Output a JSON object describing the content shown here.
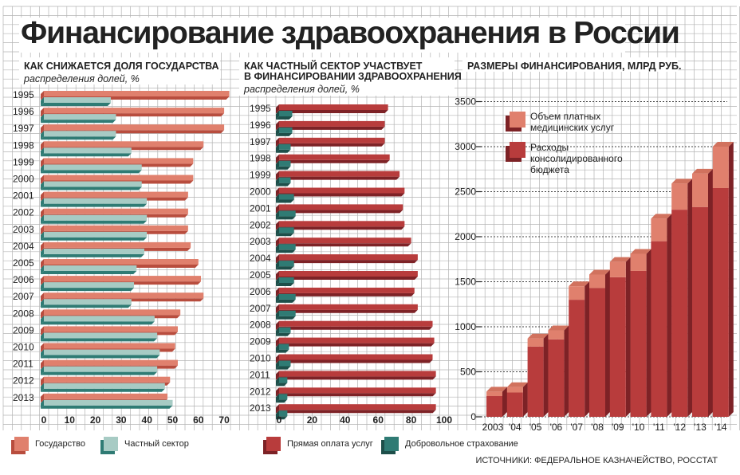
{
  "title": "Финансирование здравоохранения в России",
  "colors": {
    "red_light": "#e0806d",
    "red_dark": "#b83c3c",
    "teal_light": "#a7cbc4",
    "teal_dark": "#2f7b74",
    "grid": "#b4b4b4"
  },
  "panel1": {
    "title": "КАК СНИЖАЕТСЯ ДОЛЯ ГОСУДАРСТВА",
    "subtitle": "распределения долей, %",
    "legend": [
      "Государство",
      "Частный сектор"
    ]
  },
  "panel2": {
    "title_line1": "КАК ЧАСТНЫЙ СЕКТОР УЧАСТВУЕТ",
    "title_line2": "В ФИНАНСИРОВАНИИ ЗДРАВООХРАНЕНИЯ",
    "subtitle": "распределения долей, %",
    "legend": [
      "Прямая оплата услуг",
      "Добровольное страхование"
    ]
  },
  "panel3": {
    "title": "РАЗМЕРЫ ФИНАНСИРОВАНИЯ, МЛРД РУБ.",
    "legend": [
      "Объем платных медицинских услуг",
      "Расходы консолидированного бюджета"
    ]
  },
  "source": "ИСТОЧНИКИ: ФЕДЕРАЛЬНОЕ КАЗНАЧЕЙСТВО, РОССТАТ",
  "chart_data": [
    {
      "type": "bar",
      "orientation": "horizontal",
      "title": "КАК СНИЖАЕТСЯ ДОЛЯ ГОСУДАРСТВА",
      "categories": [
        "1995",
        "1996",
        "1997",
        "1998",
        "1999",
        "2000",
        "2001",
        "2002",
        "2003",
        "2004",
        "2005",
        "2006",
        "2007",
        "2008",
        "2009",
        "2010",
        "2011",
        "2012",
        "2013"
      ],
      "series": [
        {
          "name": "Государство",
          "values": [
            72,
            70,
            70,
            62,
            58,
            58,
            56,
            56,
            56,
            57,
            60,
            61,
            62,
            53,
            52,
            51,
            52,
            49,
            48
          ]
        },
        {
          "name": "Частный сектор",
          "values": [
            26,
            28,
            28,
            34,
            38,
            38,
            40,
            40,
            40,
            39,
            36,
            35,
            34,
            43,
            44,
            45,
            44,
            47,
            50
          ]
        }
      ],
      "xticks": [
        0,
        10,
        20,
        30,
        40,
        50,
        60,
        70
      ],
      "xlim": [
        0,
        75
      ]
    },
    {
      "type": "bar",
      "orientation": "horizontal",
      "title": "КАК ЧАСТНЫЙ СЕКТОР УЧАСТВУЕТ В ФИНАНСИРОВАНИИ ЗДРАВООХРАНЕНИЯ",
      "categories": [
        "1995",
        "1996",
        "1997",
        "1998",
        "1999",
        "2000",
        "2001",
        "2002",
        "2003",
        "2004",
        "2005",
        "2006",
        "2007",
        "2008",
        "2009",
        "2010",
        "2011",
        "2012",
        "2013"
      ],
      "series": [
        {
          "name": "Прямая оплата услуг",
          "values": [
            66,
            64,
            64,
            67,
            73,
            76,
            75,
            76,
            80,
            84,
            84,
            82,
            84,
            93,
            94,
            93,
            95,
            95,
            95
          ]
        },
        {
          "name": "Добровольное страхование",
          "values": [
            8,
            8,
            7,
            7,
            7,
            9,
            10,
            9,
            10,
            9,
            9,
            10,
            10,
            7,
            6,
            7,
            5,
            5,
            5
          ]
        }
      ],
      "xticks": [
        0,
        20,
        40,
        60,
        80,
        100
      ],
      "xlim": [
        0,
        100
      ]
    },
    {
      "type": "bar",
      "stacked": true,
      "title": "РАЗМЕРЫ ФИНАНСИРОВАНИЯ, МЛРД РУБ.",
      "categories": [
        "2003",
        "'04",
        "'05",
        "'06",
        "'07",
        "'08",
        "'09",
        "'10",
        "'11",
        "'12",
        "'13",
        "'14"
      ],
      "series": [
        {
          "name": "Расходы консолидированного бюджета",
          "values": [
            230,
            270,
            780,
            860,
            1300,
            1430,
            1550,
            1620,
            1950,
            2300,
            2330,
            2540
          ]
        },
        {
          "name": "Объем платных медицинских услуг",
          "values": [
            50,
            60,
            90,
            100,
            150,
            150,
            170,
            190,
            250,
            290,
            370,
            460
          ]
        }
      ],
      "yticks": [
        0,
        500,
        1000,
        1500,
        2000,
        2500,
        3000,
        3500
      ],
      "ylim": [
        0,
        3500
      ]
    }
  ]
}
